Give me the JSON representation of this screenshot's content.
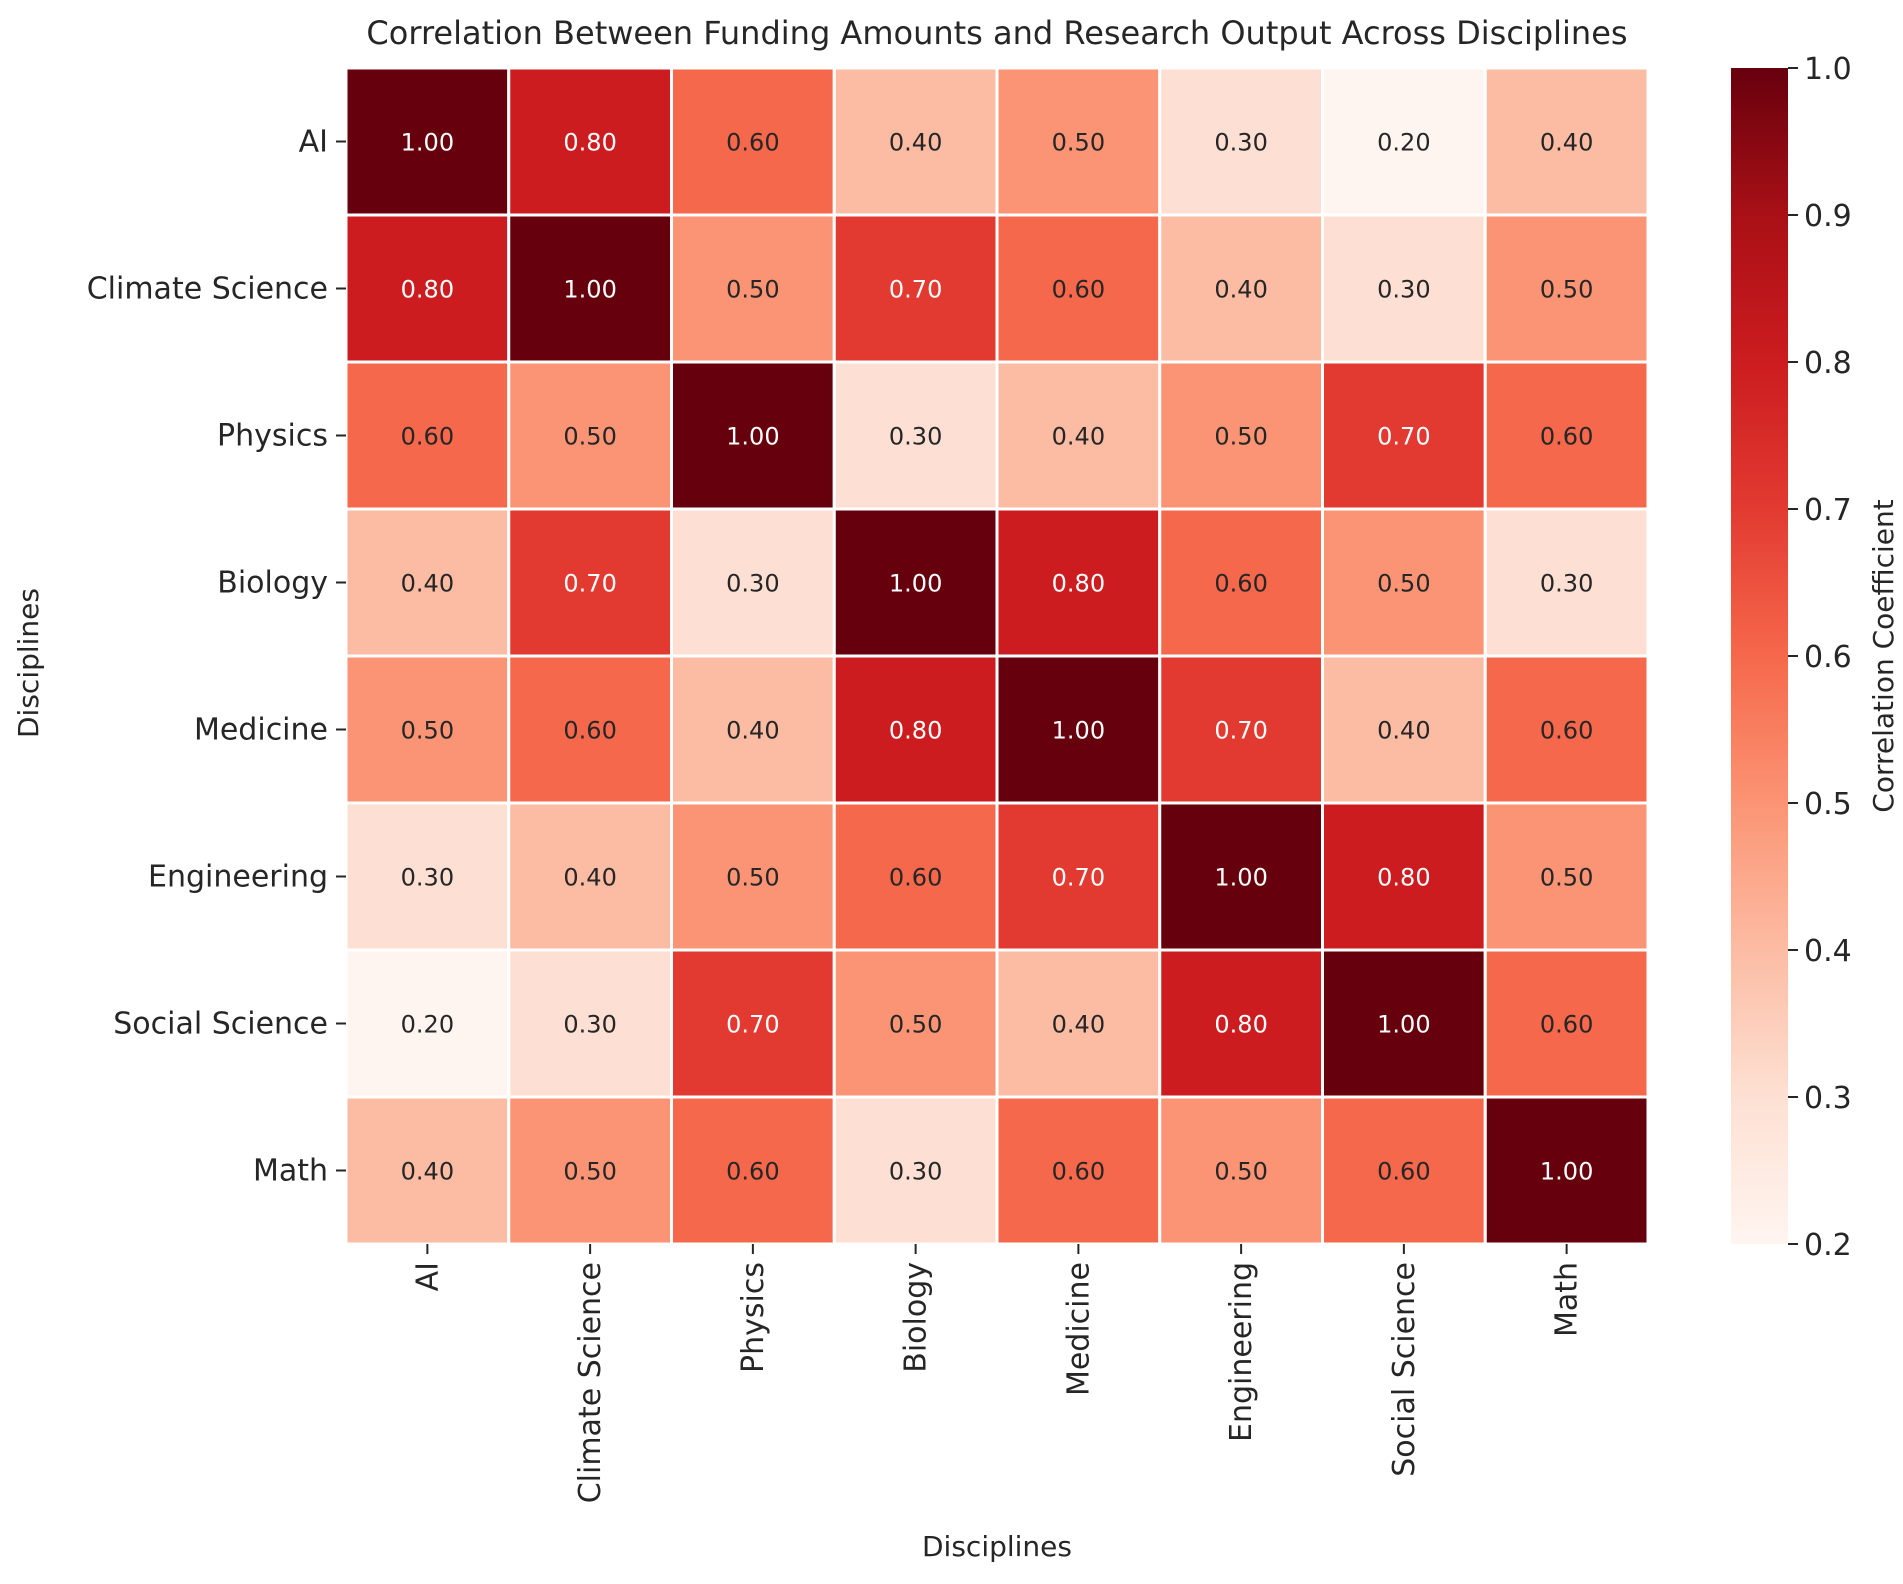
{
  "chart_data": {
    "type": "heatmap",
    "title": "Correlation Between Funding Amounts and Research Output Across Disciplines",
    "xlabel": "Disciplines",
    "ylabel": "Disciplines",
    "x_categories": [
      "AI",
      "Climate Science",
      "Physics",
      "Biology",
      "Medicine",
      "Engineering",
      "Social Science",
      "Math"
    ],
    "y_categories": [
      "AI",
      "Climate Science",
      "Physics",
      "Biology",
      "Medicine",
      "Engineering",
      "Social Science",
      "Math"
    ],
    "values": [
      [
        1.0,
        0.8,
        0.6,
        0.4,
        0.5,
        0.3,
        0.2,
        0.4
      ],
      [
        0.8,
        1.0,
        0.5,
        0.7,
        0.6,
        0.4,
        0.3,
        0.5
      ],
      [
        0.6,
        0.5,
        1.0,
        0.3,
        0.4,
        0.5,
        0.7,
        0.6
      ],
      [
        0.4,
        0.7,
        0.3,
        1.0,
        0.8,
        0.6,
        0.5,
        0.3
      ],
      [
        0.5,
        0.6,
        0.4,
        0.8,
        1.0,
        0.7,
        0.4,
        0.6
      ],
      [
        0.3,
        0.4,
        0.5,
        0.6,
        0.7,
        1.0,
        0.8,
        0.5
      ],
      [
        0.2,
        0.3,
        0.7,
        0.5,
        0.4,
        0.8,
        1.0,
        0.6
      ],
      [
        0.4,
        0.5,
        0.6,
        0.3,
        0.6,
        0.5,
        0.6,
        1.0
      ]
    ],
    "value_format": "0.00",
    "colorscale": "Reds",
    "colorscale_stops": [
      {
        "v": 0.2,
        "color": "#fff5f0"
      },
      {
        "v": 0.3,
        "color": "#fde0d3"
      },
      {
        "v": 0.4,
        "color": "#fcbca3"
      },
      {
        "v": 0.5,
        "color": "#fb9474"
      },
      {
        "v": 0.6,
        "color": "#f6684b"
      },
      {
        "v": 0.7,
        "color": "#e23a31"
      },
      {
        "v": 0.8,
        "color": "#cc1c1f"
      },
      {
        "v": 0.9,
        "color": "#a91016"
      },
      {
        "v": 1.0,
        "color": "#67000d"
      }
    ],
    "vmin": 0.2,
    "vmax": 1.0,
    "colorbar": {
      "label": "Correlation Coefficient",
      "ticks": [
        0.2,
        0.3,
        0.4,
        0.5,
        0.6,
        0.7,
        0.8,
        0.9,
        1.0
      ],
      "tick_labels": [
        "0.2",
        "0.3",
        "0.4",
        "0.5",
        "0.6",
        "0.7",
        "0.8",
        "0.9",
        "1.0"
      ]
    },
    "cell_border_color": "#ffffff",
    "annotation_text_dark": "#262626",
    "annotation_text_light": "#ffffff"
  }
}
